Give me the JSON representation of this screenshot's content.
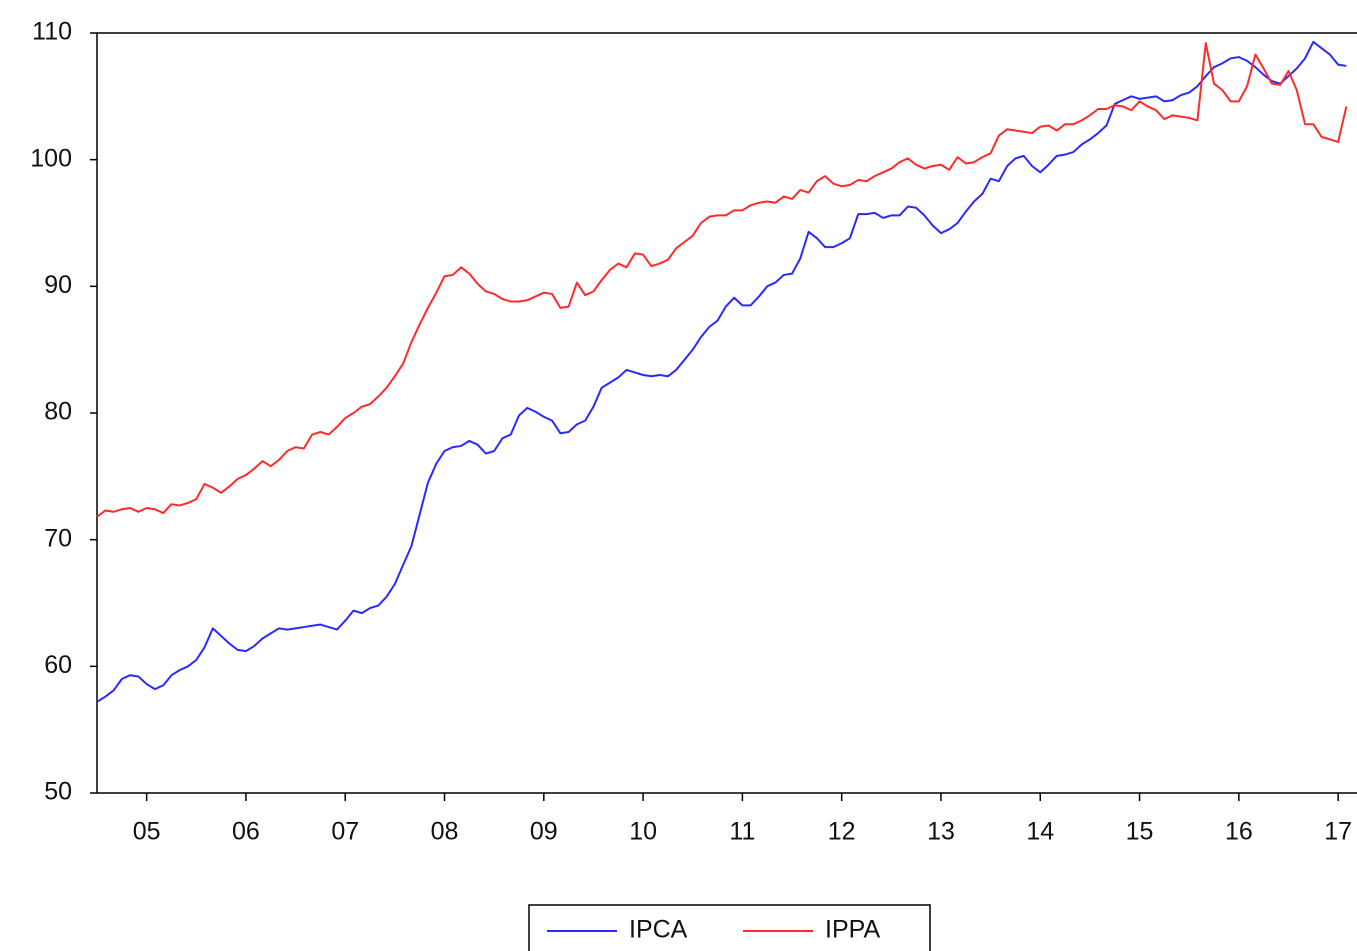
{
  "chart_data": {
    "type": "line",
    "x": [
      2005,
      2005.083,
      2005.167,
      2005.25,
      2005.333,
      2005.417,
      2005.5,
      2005.583,
      2005.667,
      2005.75,
      2005.833,
      2005.917,
      2006,
      2006.083,
      2006.167,
      2006.25,
      2006.333,
      2006.417,
      2006.5,
      2006.583,
      2006.667,
      2006.75,
      2006.833,
      2006.917,
      2007,
      2007.083,
      2007.167,
      2007.25,
      2007.333,
      2007.417,
      2007.5,
      2007.583,
      2007.667,
      2007.75,
      2007.833,
      2007.917,
      2008,
      2008.083,
      2008.167,
      2008.25,
      2008.333,
      2008.417,
      2008.5,
      2008.583,
      2008.667,
      2008.75,
      2008.833,
      2008.917,
      2009,
      2009.083,
      2009.167,
      2009.25,
      2009.333,
      2009.417,
      2009.5,
      2009.583,
      2009.667,
      2009.75,
      2009.833,
      2009.917,
      2010,
      2010.083,
      2010.167,
      2010.25,
      2010.333,
      2010.417,
      2010.5,
      2010.583,
      2010.667,
      2010.75,
      2010.833,
      2010.917,
      2011,
      2011.083,
      2011.167,
      2011.25,
      2011.333,
      2011.417,
      2011.5,
      2011.583,
      2011.667,
      2011.75,
      2011.833,
      2011.917,
      2012,
      2012.083,
      2012.167,
      2012.25,
      2012.333,
      2012.417,
      2012.5,
      2012.583,
      2012.667,
      2012.75,
      2012.833,
      2012.917,
      2013,
      2013.083,
      2013.167,
      2013.25,
      2013.333,
      2013.417,
      2013.5,
      2013.583,
      2013.667,
      2013.75,
      2013.833,
      2013.917,
      2014,
      2014.083,
      2014.167,
      2014.25,
      2014.333,
      2014.417,
      2014.5,
      2014.583,
      2014.667,
      2014.75,
      2014.833,
      2014.917,
      2015,
      2015.083,
      2015.167,
      2015.25,
      2015.333,
      2015.417,
      2015.5,
      2015.583,
      2015.667,
      2015.75,
      2015.833,
      2015.917,
      2016,
      2016.083,
      2016.167,
      2016.25,
      2016.333,
      2016.417,
      2016.5,
      2016.583,
      2016.667,
      2016.75,
      2016.833,
      2016.917,
      2017,
      2017.083,
      2017.167,
      2017.25,
      2017.333,
      2017.417,
      2017.5,
      2017.583
    ],
    "series": [
      {
        "name": "IPCA",
        "color": "#2a2aff",
        "values": [
          57.2,
          57.6,
          58.1,
          59.0,
          59.3,
          59.2,
          58.6,
          58.2,
          58.5,
          59.3,
          59.7,
          60.0,
          60.5,
          61.5,
          63.0,
          62.4,
          61.8,
          61.3,
          61.2,
          61.6,
          62.2,
          62.6,
          63.0,
          62.9,
          63.0,
          63.1,
          63.2,
          63.3,
          63.1,
          62.9,
          63.6,
          64.4,
          64.2,
          64.6,
          64.8,
          65.5,
          66.5,
          68.0,
          69.5,
          72.0,
          74.5,
          76.0,
          77.0,
          77.3,
          77.4,
          77.8,
          77.5,
          76.8,
          77.0,
          78.0,
          78.3,
          79.8,
          80.4,
          80.1,
          79.7,
          79.4,
          78.4,
          78.5,
          79.1,
          79.4,
          80.5,
          82.0,
          82.4,
          82.8,
          83.4,
          83.2,
          83.0,
          82.9,
          83.0,
          82.9,
          83.4,
          84.2,
          85.0,
          86.0,
          86.8,
          87.3,
          88.4,
          89.1,
          88.5,
          88.5,
          89.2,
          90.0,
          90.3,
          90.9,
          91.0,
          92.2,
          94.3,
          93.8,
          93.1,
          93.1,
          93.4,
          93.8,
          95.7,
          95.7,
          95.8,
          95.4,
          95.6,
          95.6,
          96.3,
          96.2,
          95.6,
          94.8,
          94.2,
          94.5,
          95.0,
          95.9,
          96.7,
          97.3,
          98.5,
          98.3,
          99.5,
          100.1,
          100.3,
          99.5,
          99.0,
          99.6,
          100.3,
          100.4,
          100.6,
          101.2,
          101.6,
          102.1,
          102.7,
          104.4,
          104.7,
          105.0,
          104.8,
          104.9,
          105.0,
          104.6,
          104.7,
          105.1,
          105.3,
          105.8,
          106.6,
          107.3,
          107.6,
          108.0,
          108.1,
          107.8,
          107.3,
          106.7,
          106.2,
          106.0,
          106.6,
          107.2,
          108.0,
          109.3,
          108.8,
          108.3,
          107.5,
          107.4
        ]
      },
      {
        "name": "IPPA",
        "color": "#ff2a2a",
        "values": [
          71.8,
          72.3,
          72.2,
          72.4,
          72.5,
          72.2,
          72.5,
          72.4,
          72.1,
          72.8,
          72.7,
          72.9,
          73.2,
          74.4,
          74.1,
          73.7,
          74.2,
          74.8,
          75.1,
          75.6,
          76.2,
          75.8,
          76.3,
          77.0,
          77.3,
          77.2,
          78.3,
          78.5,
          78.3,
          78.9,
          79.6,
          80.0,
          80.5,
          80.7,
          81.3,
          82.0,
          82.9,
          83.9,
          85.6,
          87.0,
          88.3,
          89.5,
          90.8,
          90.9,
          91.5,
          91.0,
          90.2,
          89.6,
          89.4,
          89.0,
          88.8,
          88.8,
          88.9,
          89.2,
          89.5,
          89.4,
          88.3,
          88.4,
          90.3,
          89.3,
          89.6,
          90.5,
          91.3,
          91.8,
          91.5,
          92.6,
          92.5,
          91.6,
          91.8,
          92.1,
          93.0,
          93.5,
          94.0,
          95.0,
          95.5,
          95.6,
          95.6,
          96.0,
          96.0,
          96.4,
          96.6,
          96.7,
          96.6,
          97.1,
          96.9,
          97.6,
          97.4,
          98.3,
          98.7,
          98.1,
          97.9,
          98.0,
          98.4,
          98.3,
          98.7,
          99.0,
          99.3,
          99.8,
          100.1,
          99.6,
          99.3,
          99.5,
          99.6,
          99.2,
          100.2,
          99.7,
          99.8,
          100.2,
          100.5,
          101.9,
          102.4,
          102.3,
          102.2,
          102.1,
          102.6,
          102.7,
          102.3,
          102.8,
          102.8,
          103.1,
          103.5,
          104.0,
          104.0,
          104.3,
          104.2,
          103.9,
          104.6,
          104.2,
          103.9,
          103.2,
          103.5,
          103.4,
          103.3,
          103.1,
          109.2,
          106.0,
          105.5,
          104.6,
          104.6,
          105.8,
          108.3,
          107.2,
          106.0,
          105.9,
          107.0,
          105.5,
          102.8,
          102.8,
          101.8,
          101.6,
          101.4,
          104.2
        ]
      }
    ],
    "xlim": [
      2005,
      2017.69
    ],
    "xticks": [
      {
        "value": 2005.5,
        "label": "05"
      },
      {
        "value": 2006.5,
        "label": "06"
      },
      {
        "value": 2007.5,
        "label": "07"
      },
      {
        "value": 2008.5,
        "label": "08"
      },
      {
        "value": 2009.5,
        "label": "09"
      },
      {
        "value": 2010.5,
        "label": "10"
      },
      {
        "value": 2011.5,
        "label": "11"
      },
      {
        "value": 2012.5,
        "label": "12"
      },
      {
        "value": 2013.5,
        "label": "13"
      },
      {
        "value": 2014.5,
        "label": "14"
      },
      {
        "value": 2015.5,
        "label": "15"
      },
      {
        "value": 2016.5,
        "label": "16"
      },
      {
        "value": 2017.5,
        "label": "17"
      }
    ],
    "ylim": [
      50,
      110
    ],
    "yticks": [
      50,
      60,
      70,
      80,
      90,
      100,
      110
    ],
    "grid": false,
    "legend": "bottom"
  }
}
